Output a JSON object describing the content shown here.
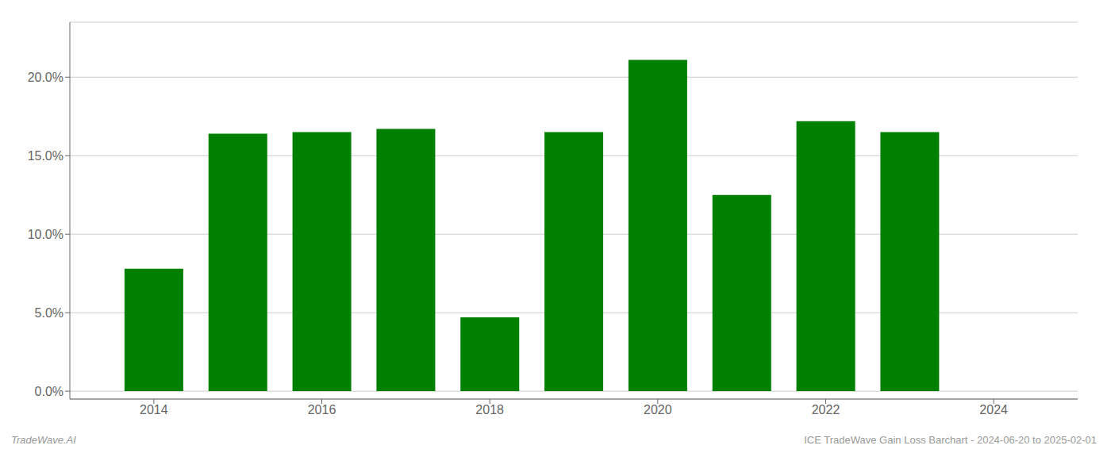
{
  "chart_data": {
    "type": "bar",
    "x": [
      2014,
      2015,
      2016,
      2017,
      2018,
      2019,
      2020,
      2021,
      2022,
      2023
    ],
    "values": [
      0.078,
      0.164,
      0.165,
      0.167,
      0.047,
      0.165,
      0.211,
      0.125,
      0.172,
      0.165
    ],
    "color": "#008000",
    "xlim": [
      2013.0,
      2025.0
    ],
    "xticks": [
      2014,
      2016,
      2018,
      2020,
      2022,
      2024
    ],
    "ylim": [
      -0.005,
      0.235
    ],
    "yticks": [
      {
        "value": 0.0,
        "label": "0.0%"
      },
      {
        "value": 0.05,
        "label": "5.0%"
      },
      {
        "value": 0.1,
        "label": "10.0%"
      },
      {
        "value": 0.15,
        "label": "15.0%"
      },
      {
        "value": 0.2,
        "label": "20.0%"
      }
    ],
    "grid": true,
    "annotations": [
      "TradeWave.AI",
      "ICE TradeWave Gain Loss Barchart - 2024-06-20 to 2025-02-01"
    ]
  }
}
